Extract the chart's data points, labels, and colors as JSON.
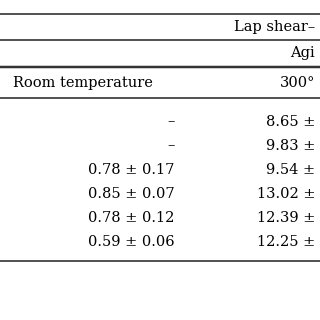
{
  "title_top": "Lap shear–",
  "sub_header": "Agi",
  "col1_header": "Room temperature",
  "col2_header": "300°",
  "row_data": [
    {
      "col1": "–",
      "col2": "8.65 ±"
    },
    {
      "col1": "–",
      "col2": "9.83 ±"
    },
    {
      "col1": "0.78 ± 0.17",
      "col2": "9.54 ±"
    },
    {
      "col1": "0.85 ± 0.07",
      "col2": "13.02 ±"
    },
    {
      "col1": "0.78 ± 0.12",
      "col2": "12.39 ±"
    },
    {
      "col1": "0.59 ± 0.06",
      "col2": "12.25 ±"
    }
  ],
  "bg_color": "#ffffff",
  "text_color": "#000000",
  "line_color": "#333333",
  "font_size_header": 10.5,
  "font_size_data": 10.5,
  "font_size_title": 10.5
}
